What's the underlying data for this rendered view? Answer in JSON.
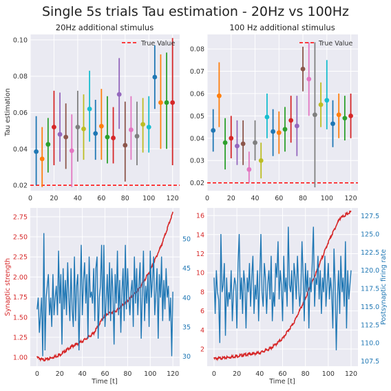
{
  "figure": {
    "suptitle": "Single 5s trials Tau estimation - 20Hz vs 100Hz"
  },
  "colors": {
    "axes_bg": "#eaeaf2",
    "grid": "#ffffff",
    "true_value": "#ff0000",
    "synaptic": "#d62728",
    "firing": "#1f77b4",
    "cycle": [
      "#1f77b4",
      "#ff7f0e",
      "#2ca02c",
      "#d62728",
      "#9467bd",
      "#8c564b",
      "#e377c2",
      "#7f7f7f",
      "#bcbd22",
      "#17becf"
    ]
  },
  "chart_data": [
    {
      "type": "scatter",
      "title": "20Hz additional stimulus",
      "xlabel": "",
      "ylabel": "Tau estimation",
      "xlim": [
        0,
        126
      ],
      "ylim": [
        0.017,
        0.103
      ],
      "xticks": [
        0,
        20,
        40,
        60,
        80,
        100,
        120
      ],
      "yticks": [
        0.02,
        0.04,
        0.06,
        0.08,
        0.1
      ],
      "ytick_labels": [
        "0.02",
        "0.04",
        "0.06",
        "0.08",
        "0.10"
      ],
      "grid": true,
      "legend": {
        "entries": [
          "True Value"
        ],
        "placement": "top-right"
      },
      "reference_line": {
        "name": "True Value",
        "y": 0.02,
        "style": "dashed"
      },
      "points": [
        {
          "x": 5,
          "y": 0.0385,
          "lo": 0.02,
          "hi": 0.058
        },
        {
          "x": 10,
          "y": 0.0345,
          "lo": 0.019,
          "hi": 0.052
        },
        {
          "x": 15,
          "y": 0.0425,
          "lo": 0.027,
          "hi": 0.057
        },
        {
          "x": 20,
          "y": 0.052,
          "lo": 0.031,
          "hi": 0.072
        },
        {
          "x": 25,
          "y": 0.048,
          "lo": 0.033,
          "hi": 0.071
        },
        {
          "x": 30,
          "y": 0.0465,
          "lo": 0.029,
          "hi": 0.065
        },
        {
          "x": 35,
          "y": 0.039,
          "lo": 0.019,
          "hi": 0.059
        },
        {
          "x": 40,
          "y": 0.052,
          "lo": 0.033,
          "hi": 0.072
        },
        {
          "x": 45,
          "y": 0.051,
          "lo": 0.034,
          "hi": 0.07
        },
        {
          "x": 50,
          "y": 0.062,
          "lo": 0.044,
          "hi": 0.083
        },
        {
          "x": 55,
          "y": 0.0485,
          "lo": 0.034,
          "hi": 0.067
        },
        {
          "x": 60,
          "y": 0.0525,
          "lo": 0.034,
          "hi": 0.073
        },
        {
          "x": 65,
          "y": 0.0465,
          "lo": 0.032,
          "hi": 0.069
        },
        {
          "x": 70,
          "y": 0.046,
          "lo": 0.032,
          "hi": 0.063
        },
        {
          "x": 75,
          "y": 0.07,
          "lo": 0.051,
          "hi": 0.09
        },
        {
          "x": 80,
          "y": 0.042,
          "lo": 0.022,
          "hi": 0.066
        },
        {
          "x": 85,
          "y": 0.0505,
          "lo": 0.034,
          "hi": 0.069
        },
        {
          "x": 90,
          "y": 0.047,
          "lo": 0.031,
          "hi": 0.066
        },
        {
          "x": 95,
          "y": 0.0535,
          "lo": 0.038,
          "hi": 0.068
        },
        {
          "x": 100,
          "y": 0.052,
          "lo": 0.038,
          "hi": 0.069
        },
        {
          "x": 105,
          "y": 0.0795,
          "lo": 0.062,
          "hi": 0.097
        },
        {
          "x": 110,
          "y": 0.0655,
          "lo": 0.04,
          "hi": 0.092
        },
        {
          "x": 115,
          "y": 0.0655,
          "lo": 0.04,
          "hi": 0.093
        },
        {
          "x": 120,
          "y": 0.0655,
          "lo": 0.031,
          "hi": 0.101
        }
      ]
    },
    {
      "type": "scatter",
      "title": "100 Hz additional stimulus",
      "xlabel": "",
      "ylabel": "",
      "xlim": [
        0,
        126
      ],
      "ylim": [
        0.0165,
        0.0865
      ],
      "xticks": [
        0,
        20,
        40,
        60,
        80,
        100,
        120
      ],
      "yticks": [
        0.02,
        0.03,
        0.04,
        0.05,
        0.06,
        0.07,
        0.08
      ],
      "ytick_labels": [
        "0.02",
        "0.03",
        "0.04",
        "0.05",
        "0.06",
        "0.07",
        "0.08"
      ],
      "grid": true,
      "legend": {
        "entries": [
          "True Value"
        ],
        "placement": "top-right"
      },
      "reference_line": {
        "name": "True Value",
        "y": 0.02,
        "style": "dashed"
      },
      "points": [
        {
          "x": 5,
          "y": 0.0435,
          "lo": 0.034,
          "hi": 0.053
        },
        {
          "x": 10,
          "y": 0.059,
          "lo": 0.045,
          "hi": 0.074
        },
        {
          "x": 15,
          "y": 0.038,
          "lo": 0.026,
          "hi": 0.049
        },
        {
          "x": 20,
          "y": 0.04,
          "lo": 0.031,
          "hi": 0.05
        },
        {
          "x": 25,
          "y": 0.0365,
          "lo": 0.028,
          "hi": 0.048
        },
        {
          "x": 30,
          "y": 0.0375,
          "lo": 0.028,
          "hi": 0.048
        },
        {
          "x": 35,
          "y": 0.026,
          "lo": 0.02,
          "hi": 0.034
        },
        {
          "x": 40,
          "y": 0.038,
          "lo": 0.03,
          "hi": 0.048
        },
        {
          "x": 45,
          "y": 0.03,
          "lo": 0.022,
          "hi": 0.038
        },
        {
          "x": 50,
          "y": 0.0495,
          "lo": 0.04,
          "hi": 0.06
        },
        {
          "x": 55,
          "y": 0.043,
          "lo": 0.032,
          "hi": 0.053
        },
        {
          "x": 60,
          "y": 0.0425,
          "lo": 0.033,
          "hi": 0.052
        },
        {
          "x": 65,
          "y": 0.044,
          "lo": 0.034,
          "hi": 0.054
        },
        {
          "x": 70,
          "y": 0.048,
          "lo": 0.038,
          "hi": 0.059
        },
        {
          "x": 75,
          "y": 0.0455,
          "lo": 0.032,
          "hi": 0.059
        },
        {
          "x": 80,
          "y": 0.071,
          "lo": 0.061,
          "hi": 0.081
        },
        {
          "x": 85,
          "y": 0.0665,
          "lo": 0.05,
          "hi": 0.083
        },
        {
          "x": 90,
          "y": 0.0505,
          "lo": 0.018,
          "hi": 0.083
        },
        {
          "x": 95,
          "y": 0.055,
          "lo": 0.045,
          "hi": 0.065
        },
        {
          "x": 100,
          "y": 0.057,
          "lo": 0.044,
          "hi": 0.075
        },
        {
          "x": 105,
          "y": 0.0465,
          "lo": 0.036,
          "hi": 0.057
        },
        {
          "x": 110,
          "y": 0.0505,
          "lo": 0.04,
          "hi": 0.06
        },
        {
          "x": 115,
          "y": 0.049,
          "lo": 0.039,
          "hi": 0.059
        },
        {
          "x": 120,
          "y": 0.05,
          "lo": 0.04,
          "hi": 0.06
        }
      ]
    },
    {
      "type": "line",
      "title": "",
      "xlabel": "Time [t]",
      "ylabel_left": "Synaptic strength",
      "ylabel_right": "",
      "xlim": [
        -6,
        126
      ],
      "ylim_left": [
        0.89,
        2.86
      ],
      "ylim_right": [
        28.3,
        55.3
      ],
      "xticks": [
        0,
        20,
        40,
        60,
        80,
        100,
        120
      ],
      "yticks_left": [
        1.0,
        1.25,
        1.5,
        1.75,
        2.0,
        2.25,
        2.5,
        2.75
      ],
      "ytick_labels_left": [
        "1.00",
        "1.25",
        "1.50",
        "1.75",
        "2.00",
        "2.25",
        "2.50",
        "2.75"
      ],
      "yticks_right": [
        30,
        35,
        40,
        45,
        50
      ],
      "grid": true,
      "synaptic_anchors": [
        [
          0,
          1.0
        ],
        [
          5,
          0.97
        ],
        [
          10,
          0.98
        ],
        [
          20,
          1.03
        ],
        [
          30,
          1.13
        ],
        [
          40,
          1.2
        ],
        [
          50,
          1.3
        ],
        [
          60,
          1.53
        ],
        [
          70,
          1.58
        ],
        [
          80,
          1.7
        ],
        [
          90,
          1.85
        ],
        [
          100,
          2.08
        ],
        [
          110,
          2.4
        ],
        [
          115,
          2.6
        ],
        [
          120,
          2.8
        ]
      ],
      "firing_rate": [
        38,
        40,
        34,
        37,
        40,
        30,
        51,
        31,
        40,
        42,
        44,
        37,
        40,
        35,
        44,
        37,
        40,
        42,
        37,
        48,
        39,
        44,
        32,
        45,
        38,
        43,
        37,
        46,
        40,
        36,
        45,
        38,
        35,
        47,
        36,
        42,
        44,
        31,
        40,
        49,
        37,
        43,
        46,
        39,
        44,
        33,
        47,
        40,
        41,
        39,
        45,
        36,
        45,
        47,
        33,
        40,
        42,
        49,
        36,
        49,
        35,
        39,
        44,
        37,
        46,
        36,
        45,
        41,
        32,
        44,
        39,
        48,
        37,
        43,
        34,
        41,
        45,
        36,
        49,
        38,
        45,
        40,
        37,
        41,
        43,
        35,
        47,
        39,
        45,
        37,
        42,
        46,
        33,
        41,
        48,
        36,
        42,
        39,
        44,
        35,
        48,
        40,
        43,
        47,
        37,
        41,
        45,
        33,
        44,
        40,
        47,
        36,
        43,
        38,
        45,
        40,
        42,
        36,
        40,
        30,
        41
      ]
    },
    {
      "type": "line",
      "title": "",
      "xlabel": "Time [t]",
      "ylabel_left": "",
      "ylabel_right": "Postsynaptic firing rate",
      "xlim": [
        -6,
        126
      ],
      "ylim_left": [
        0.2,
        16.8
      ],
      "ylim_right": [
        106.8,
        128.6
      ],
      "xticks": [
        0,
        20,
        40,
        60,
        80,
        100,
        120
      ],
      "yticks_left": [
        2,
        4,
        6,
        8,
        10,
        12,
        14,
        16
      ],
      "yticks_right": [
        107.5,
        110.0,
        112.5,
        115.0,
        117.5,
        120.0,
        122.5,
        125.0,
        127.5
      ],
      "ytick_labels_right": [
        "107.5",
        "110.0",
        "112.5",
        "115.0",
        "117.5",
        "120.0",
        "122.5",
        "125.0",
        "127.5"
      ],
      "grid": true,
      "synaptic_anchors": [
        [
          0,
          1.0
        ],
        [
          10,
          1.08
        ],
        [
          20,
          1.25
        ],
        [
          30,
          1.45
        ],
        [
          40,
          1.6
        ],
        [
          50,
          2.1
        ],
        [
          60,
          3.1
        ],
        [
          70,
          4.8
        ],
        [
          80,
          7.3
        ],
        [
          90,
          10.2
        ],
        [
          100,
          13.2
        ],
        [
          110,
          15.7
        ],
        [
          120,
          16.4
        ]
      ],
      "firing_rate": [
        119,
        114,
        120,
        117,
        116,
        110,
        125,
        117,
        118,
        121,
        111,
        119,
        115,
        117,
        116,
        120,
        113,
        117,
        119,
        118,
        112,
        121,
        125,
        116,
        119,
        114,
        120,
        118,
        112,
        119,
        117,
        121,
        115,
        119,
        122,
        114,
        118,
        116,
        120,
        113,
        119,
        125,
        117,
        115,
        121,
        119,
        114,
        118,
        120,
        116,
        122,
        113,
        117,
        115,
        121,
        119,
        124,
        116,
        120,
        118,
        113,
        122,
        117,
        119,
        115,
        126,
        118,
        117,
        120,
        114,
        121,
        119,
        116,
        122,
        118,
        115,
        117,
        124,
        119,
        113,
        121,
        117,
        120,
        112,
        119,
        117,
        121,
        126,
        115,
        119,
        118,
        122,
        116,
        120,
        114,
        119,
        117,
        122,
        115,
        118,
        121,
        116,
        119,
        117,
        112,
        123,
        118,
        109,
        116,
        120,
        114,
        122,
        117,
        119,
        115,
        124,
        112,
        120,
        116,
        118,
        120
      ]
    }
  ]
}
